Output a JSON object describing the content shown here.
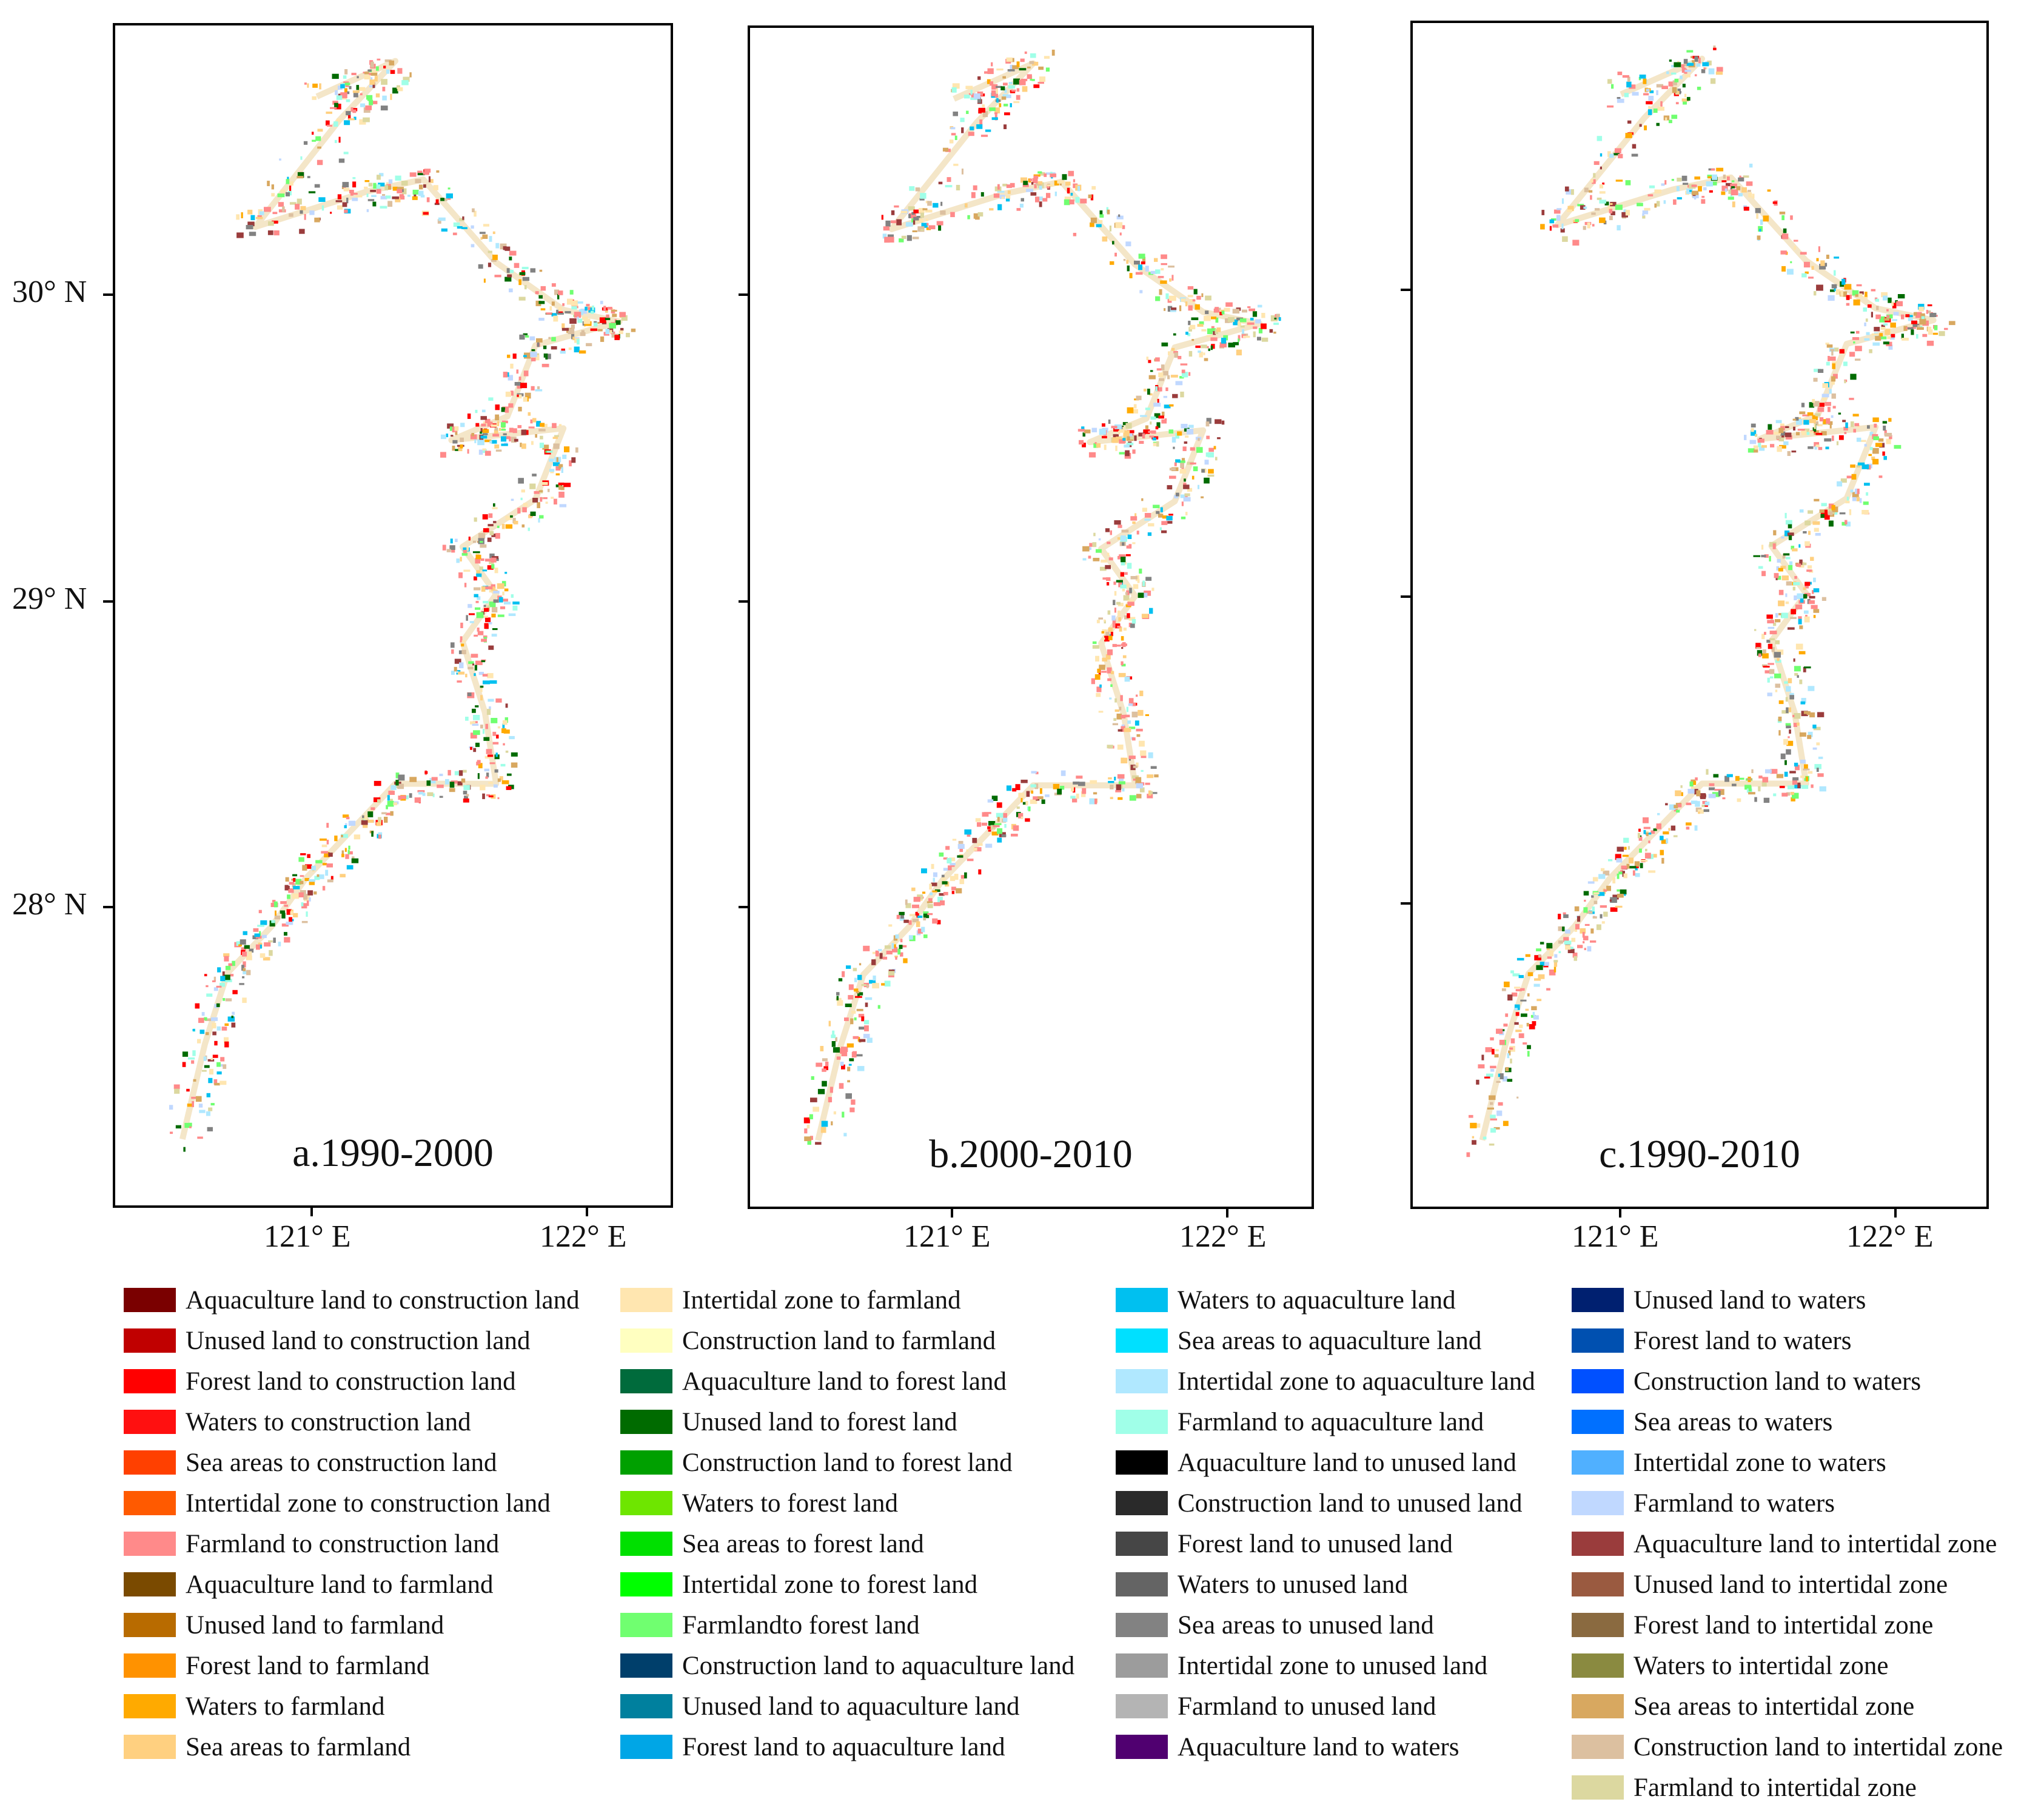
{
  "panels": [
    {
      "label": "a.1990-2000",
      "key": "a"
    },
    {
      "label": "b.2000-2010",
      "key": "b"
    },
    {
      "label": "c.1990-2010",
      "key": "c"
    }
  ],
  "lat_ticks": [
    "30° N",
    "29° N",
    "28° N"
  ],
  "lon_ticks": [
    "121° E",
    "122° E"
  ],
  "legend": [
    {
      "label": "Aquaculture land to construction land",
      "color": "#7a0000"
    },
    {
      "label": "Unused land to construction land",
      "color": "#c00000"
    },
    {
      "label": "Forest land to construction land",
      "color": "#ff0000"
    },
    {
      "label": "Waters to construction land",
      "color": "#ff1010"
    },
    {
      "label": "Sea areas to construction land",
      "color": "#ff4000"
    },
    {
      "label": "Intertidal zone to construction land",
      "color": "#ff5a00"
    },
    {
      "label": "Farmland to construction land",
      "color": "#ff8a8a"
    },
    {
      "label": "Aquaculture land to farmland",
      "color": "#7a4a00"
    },
    {
      "label": "Unused land to farmland",
      "color": "#b86b00"
    },
    {
      "label": "Forest land to farmland",
      "color": "#ff9200"
    },
    {
      "label": "Waters to farmland",
      "color": "#ffaa00"
    },
    {
      "label": "Sea areas to farmland",
      "color": "#ffd080"
    },
    {
      "label": "Intertidal zone to farmland",
      "color": "#ffe6b0"
    },
    {
      "label": "Construction land to farmland",
      "color": "#ffffc0"
    },
    {
      "label": "Aquaculture land to forest land",
      "color": "#006b3c"
    },
    {
      "label": "Unused land to forest land",
      "color": "#006b00"
    },
    {
      "label": "Construction land to forest land",
      "color": "#00a000"
    },
    {
      "label": "Waters to forest land",
      "color": "#6ee600"
    },
    {
      "label": "Sea areas to forest land",
      "color": "#00e000"
    },
    {
      "label": "Intertidal zone to forest land",
      "color": "#00ff00"
    },
    {
      "label": "Farmlandto forest land",
      "color": "#70ff70"
    },
    {
      "label": "Construction land to aquaculture land",
      "color": "#003f6b"
    },
    {
      "label": "Unused land to aquaculture land",
      "color": "#00809e"
    },
    {
      "label": "Forest land to aquaculture land",
      "color": "#00a6e6"
    },
    {
      "label": "Waters to aquaculture land",
      "color": "#00c0f0"
    },
    {
      "label": "Sea areas to aquaculture land",
      "color": "#00e0ff"
    },
    {
      "label": "Intertidal zone to aquaculture land",
      "color": "#b0e8ff"
    },
    {
      "label": "Farmland to aquaculture land",
      "color": "#a0ffe8"
    },
    {
      "label": "Aquaculture land to unused land",
      "color": "#000000"
    },
    {
      "label": "Construction land to unused land",
      "color": "#2a2a2a"
    },
    {
      "label": "Forest land to unused land",
      "color": "#464646"
    },
    {
      "label": "Waters to unused land",
      "color": "#646464"
    },
    {
      "label": "Sea areas to unused land",
      "color": "#828282"
    },
    {
      "label": "Intertidal zone to unused land",
      "color": "#9c9c9c"
    },
    {
      "label": "Farmland to unused land",
      "color": "#b4b4b4"
    },
    {
      "label": "Aquaculture land to waters",
      "color": "#500070"
    },
    {
      "label": "Unused land to waters",
      "color": "#002070"
    },
    {
      "label": "Forest land to waters",
      "color": "#0050b0"
    },
    {
      "label": "Construction land to waters",
      "color": "#0050ff"
    },
    {
      "label": "Sea areas to waters",
      "color": "#0070ff"
    },
    {
      "label": "Intertidal zone to waters",
      "color": "#50b0ff"
    },
    {
      "label": "Farmland to waters",
      "color": "#c0d8ff"
    },
    {
      "label": "Aquaculture land to intertidal zone",
      "color": "#9a3c3c"
    },
    {
      "label": "Unused land to intertidal zone",
      "color": "#9a5a40"
    },
    {
      "label": "Forest land to intertidal zone",
      "color": "#8a6a40"
    },
    {
      "label": "Waters to intertidal zone",
      "color": "#8a8a40"
    },
    {
      "label": "Sea areas to intertidal zone",
      "color": "#d8a860"
    },
    {
      "label": "Construction land to intertidal zone",
      "color": "#dcc0a0"
    },
    {
      "label": "Farmland to intertidal zone",
      "color": "#dcd8a0"
    }
  ]
}
